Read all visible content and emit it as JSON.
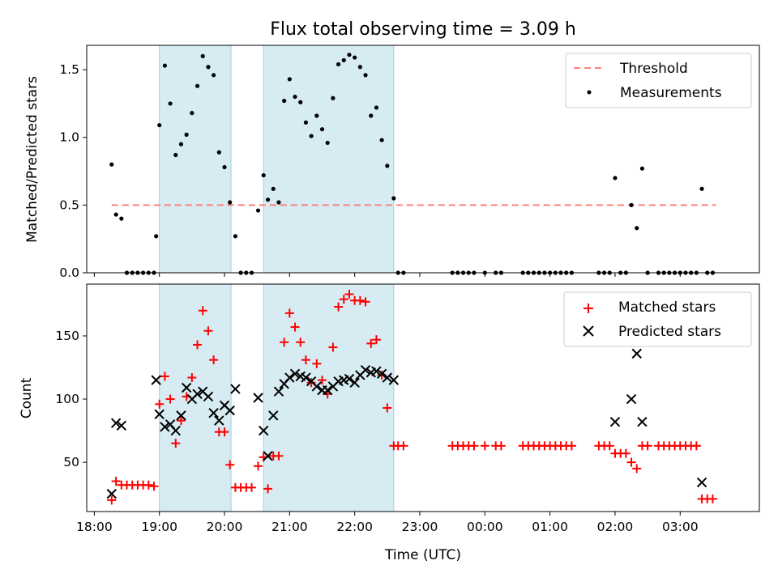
{
  "chart_data": [
    {
      "type": "scatter",
      "title": "Flux total observing time = 3.09 h",
      "ylabel": "Matched/Predicted stars",
      "ylim": [
        0,
        1.68
      ],
      "yticks": [
        0.0,
        0.5,
        1.0,
        1.5
      ],
      "ytick_labels": [
        "0.0",
        "0.5",
        "1.0",
        "1.5"
      ],
      "xlim": [
        "17:53",
        "04:13"
      ],
      "shaded_regions": [
        [
          "19:00",
          "20:06"
        ],
        [
          "20:36",
          "22:36"
        ]
      ],
      "legend_position": "top-right",
      "legend": [
        "Threshold",
        "Measurements"
      ],
      "threshold": {
        "name": "Threshold",
        "value": 0.5,
        "x_range": [
          "18:16",
          "03:33"
        ],
        "color": "#ff8080",
        "style": "dashed"
      },
      "series": [
        {
          "name": "Measurements",
          "color": "#000000",
          "points": [
            [
              "18:16",
              0.8
            ],
            [
              "18:20",
              0.43
            ],
            [
              "18:25",
              0.4
            ],
            [
              "18:30",
              0.0
            ],
            [
              "18:35",
              0.0
            ],
            [
              "18:40",
              0.0
            ],
            [
              "18:45",
              0.0
            ],
            [
              "18:50",
              0.0
            ],
            [
              "18:55",
              0.0
            ],
            [
              "18:57",
              0.27
            ],
            [
              "19:00",
              1.09
            ],
            [
              "19:05",
              1.53
            ],
            [
              "19:10",
              1.25
            ],
            [
              "19:15",
              0.87
            ],
            [
              "19:20",
              0.95
            ],
            [
              "19:25",
              1.02
            ],
            [
              "19:30",
              1.18
            ],
            [
              "19:35",
              1.38
            ],
            [
              "19:40",
              1.6
            ],
            [
              "19:45",
              1.52
            ],
            [
              "19:50",
              1.46
            ],
            [
              "19:55",
              0.89
            ],
            [
              "20:00",
              0.78
            ],
            [
              "20:05",
              0.52
            ],
            [
              "20:10",
              0.27
            ],
            [
              "20:15",
              0.0
            ],
            [
              "20:20",
              0.0
            ],
            [
              "20:25",
              0.0
            ],
            [
              "20:31",
              0.46
            ],
            [
              "20:36",
              0.72
            ],
            [
              "20:40",
              0.54
            ],
            [
              "20:45",
              0.62
            ],
            [
              "20:50",
              0.52
            ],
            [
              "20:55",
              1.27
            ],
            [
              "21:00",
              1.43
            ],
            [
              "21:05",
              1.3
            ],
            [
              "21:10",
              1.26
            ],
            [
              "21:15",
              1.11
            ],
            [
              "21:20",
              1.01
            ],
            [
              "21:25",
              1.16
            ],
            [
              "21:30",
              1.06
            ],
            [
              "21:35",
              0.96
            ],
            [
              "21:40",
              1.29
            ],
            [
              "21:45",
              1.54
            ],
            [
              "21:50",
              1.57
            ],
            [
              "21:55",
              1.61
            ],
            [
              "22:00",
              1.59
            ],
            [
              "22:05",
              1.52
            ],
            [
              "22:10",
              1.46
            ],
            [
              "22:15",
              1.16
            ],
            [
              "22:20",
              1.22
            ],
            [
              "22:25",
              0.98
            ],
            [
              "22:30",
              0.79
            ],
            [
              "22:36",
              0.55
            ],
            [
              "22:40",
              0.0
            ],
            [
              "22:45",
              0.0
            ],
            [
              "23:30",
              0.0
            ],
            [
              "23:35",
              0.0
            ],
            [
              "23:40",
              0.0
            ],
            [
              "23:45",
              0.0
            ],
            [
              "23:50",
              0.0
            ],
            [
              "00:00",
              0.0
            ],
            [
              "00:10",
              0.0
            ],
            [
              "00:15",
              0.0
            ],
            [
              "00:35",
              0.0
            ],
            [
              "00:40",
              0.0
            ],
            [
              "00:45",
              0.0
            ],
            [
              "00:50",
              0.0
            ],
            [
              "00:55",
              0.0
            ],
            [
              "01:00",
              0.0
            ],
            [
              "01:05",
              0.0
            ],
            [
              "01:10",
              0.0
            ],
            [
              "01:15",
              0.0
            ],
            [
              "01:20",
              0.0
            ],
            [
              "01:45",
              0.0
            ],
            [
              "01:50",
              0.0
            ],
            [
              "01:55",
              0.0
            ],
            [
              "02:00",
              0.7
            ],
            [
              "02:05",
              0.0
            ],
            [
              "02:10",
              0.0
            ],
            [
              "02:15",
              0.5
            ],
            [
              "02:20",
              0.33
            ],
            [
              "02:25",
              0.77
            ],
            [
              "02:30",
              0.0
            ],
            [
              "02:40",
              0.0
            ],
            [
              "02:45",
              0.0
            ],
            [
              "02:50",
              0.0
            ],
            [
              "02:55",
              0.0
            ],
            [
              "03:00",
              0.0
            ],
            [
              "03:05",
              0.0
            ],
            [
              "03:10",
              0.0
            ],
            [
              "03:15",
              0.0
            ],
            [
              "03:20",
              0.62
            ],
            [
              "03:25",
              0.0
            ],
            [
              "03:30",
              0.0
            ]
          ]
        }
      ]
    },
    {
      "type": "scatter",
      "xlabel": "Time (UTC)",
      "ylabel": "Count",
      "ylim": [
        11,
        191
      ],
      "yticks": [
        50,
        100,
        150
      ],
      "ytick_labels": [
        "50",
        "100",
        "150"
      ],
      "xlim": [
        "17:53",
        "04:13"
      ],
      "xticks": [
        "18:00",
        "19:00",
        "20:00",
        "21:00",
        "22:00",
        "23:00",
        "00:00",
        "01:00",
        "02:00",
        "03:00"
      ],
      "xtick_labels": [
        "18:00",
        "19:00",
        "20:00",
        "21:00",
        "22:00",
        "23:00",
        "00:00",
        "01:00",
        "02:00",
        "03:00"
      ],
      "shaded_regions": [
        [
          "19:00",
          "20:06"
        ],
        [
          "20:36",
          "22:36"
        ]
      ],
      "legend_position": "top-right",
      "legend": [
        "Matched stars",
        "Predicted stars"
      ],
      "series": [
        {
          "name": "Matched stars",
          "marker": "plus",
          "color": "#ff0000",
          "points": [
            [
              "18:16",
              20
            ],
            [
              "18:20",
              35
            ],
            [
              "18:25",
              32
            ],
            [
              "18:30",
              32
            ],
            [
              "18:35",
              32
            ],
            [
              "18:40",
              32
            ],
            [
              "18:45",
              32
            ],
            [
              "18:50",
              32
            ],
            [
              "18:55",
              31
            ],
            [
              "19:00",
              96
            ],
            [
              "19:05",
              118
            ],
            [
              "19:10",
              100
            ],
            [
              "19:15",
              65
            ],
            [
              "19:20",
              83
            ],
            [
              "19:25",
              102
            ],
            [
              "19:30",
              117
            ],
            [
              "19:35",
              143
            ],
            [
              "19:40",
              170
            ],
            [
              "19:45",
              154
            ],
            [
              "19:50",
              131
            ],
            [
              "19:55",
              74
            ],
            [
              "20:00",
              74
            ],
            [
              "20:05",
              48
            ],
            [
              "20:10",
              30
            ],
            [
              "20:15",
              30
            ],
            [
              "20:20",
              30
            ],
            [
              "20:25",
              30
            ],
            [
              "20:31",
              47
            ],
            [
              "20:36",
              54
            ],
            [
              "20:40",
              29
            ],
            [
              "20:45",
              55
            ],
            [
              "20:50",
              55
            ],
            [
              "20:55",
              145
            ],
            [
              "21:00",
              168
            ],
            [
              "21:05",
              157
            ],
            [
              "21:10",
              145
            ],
            [
              "21:15",
              131
            ],
            [
              "21:20",
              113
            ],
            [
              "21:25",
              128
            ],
            [
              "21:30",
              115
            ],
            [
              "21:35",
              104
            ],
            [
              "21:40",
              141
            ],
            [
              "21:45",
              173
            ],
            [
              "21:50",
              179
            ],
            [
              "21:55",
              183
            ],
            [
              "22:00",
              178
            ],
            [
              "22:05",
              178
            ],
            [
              "22:10",
              177
            ],
            [
              "22:15",
              144
            ],
            [
              "22:20",
              147
            ],
            [
              "22:25",
              119
            ],
            [
              "22:30",
              93
            ],
            [
              "22:36",
              63
            ],
            [
              "22:40",
              63
            ],
            [
              "22:45",
              63
            ],
            [
              "23:30",
              63
            ],
            [
              "23:35",
              63
            ],
            [
              "23:40",
              63
            ],
            [
              "23:45",
              63
            ],
            [
              "23:50",
              63
            ],
            [
              "00:00",
              63
            ],
            [
              "00:10",
              63
            ],
            [
              "00:15",
              63
            ],
            [
              "00:35",
              63
            ],
            [
              "00:40",
              63
            ],
            [
              "00:45",
              63
            ],
            [
              "00:50",
              63
            ],
            [
              "00:55",
              63
            ],
            [
              "01:00",
              63
            ],
            [
              "01:05",
              63
            ],
            [
              "01:10",
              63
            ],
            [
              "01:15",
              63
            ],
            [
              "01:20",
              63
            ],
            [
              "01:45",
              63
            ],
            [
              "01:50",
              63
            ],
            [
              "01:55",
              63
            ],
            [
              "02:00",
              57
            ],
            [
              "02:05",
              57
            ],
            [
              "02:10",
              57
            ],
            [
              "02:15",
              50
            ],
            [
              "02:20",
              45
            ],
            [
              "02:25",
              63
            ],
            [
              "02:30",
              63
            ],
            [
              "02:40",
              63
            ],
            [
              "02:45",
              63
            ],
            [
              "02:50",
              63
            ],
            [
              "02:55",
              63
            ],
            [
              "03:00",
              63
            ],
            [
              "03:05",
              63
            ],
            [
              "03:10",
              63
            ],
            [
              "03:15",
              63
            ],
            [
              "03:20",
              21
            ],
            [
              "03:25",
              21
            ],
            [
              "03:30",
              21
            ]
          ]
        },
        {
          "name": "Predicted stars",
          "marker": "x",
          "color": "#000000",
          "points": [
            [
              "18:16",
              25
            ],
            [
              "18:20",
              81
            ],
            [
              "18:25",
              79
            ],
            [
              "18:57",
              115
            ],
            [
              "19:00",
              88
            ],
            [
              "19:05",
              78
            ],
            [
              "19:10",
              80
            ],
            [
              "19:15",
              75
            ],
            [
              "19:20",
              87
            ],
            [
              "19:25",
              109
            ],
            [
              "19:30",
              100
            ],
            [
              "19:35",
              104
            ],
            [
              "19:40",
              106
            ],
            [
              "19:45",
              102
            ],
            [
              "19:50",
              89
            ],
            [
              "19:55",
              83
            ],
            [
              "20:00",
              95
            ],
            [
              "20:05",
              91
            ],
            [
              "20:10",
              108
            ],
            [
              "20:31",
              101
            ],
            [
              "20:36",
              75
            ],
            [
              "20:40",
              55
            ],
            [
              "20:45",
              87
            ],
            [
              "20:50",
              106
            ],
            [
              "20:55",
              112
            ],
            [
              "21:00",
              117
            ],
            [
              "21:05",
              120
            ],
            [
              "21:10",
              118
            ],
            [
              "21:15",
              117
            ],
            [
              "21:20",
              114
            ],
            [
              "21:25",
              110
            ],
            [
              "21:30",
              107
            ],
            [
              "21:35",
              107
            ],
            [
              "21:40",
              110
            ],
            [
              "21:45",
              114
            ],
            [
              "21:50",
              115
            ],
            [
              "21:55",
              116
            ],
            [
              "22:00",
              113
            ],
            [
              "22:05",
              119
            ],
            [
              "22:10",
              123
            ],
            [
              "22:15",
              121
            ],
            [
              "22:20",
              122
            ],
            [
              "22:25",
              120
            ],
            [
              "22:30",
              117
            ],
            [
              "22:36",
              115
            ],
            [
              "02:00",
              82
            ],
            [
              "02:15",
              100
            ],
            [
              "02:20",
              136
            ],
            [
              "02:25",
              82
            ],
            [
              "03:20",
              34
            ]
          ]
        }
      ]
    }
  ]
}
